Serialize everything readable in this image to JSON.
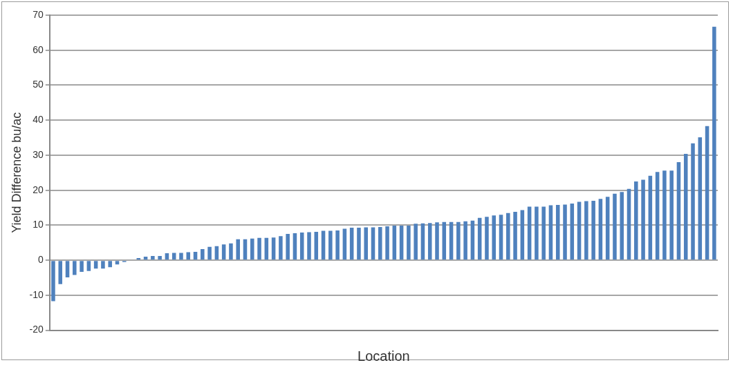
{
  "chart_data": {
    "type": "bar",
    "xlabel": "Location",
    "ylabel": "Yield Difference bu/ac",
    "color": "#4f81bd",
    "ylim": [
      -20,
      70
    ],
    "yticks": [
      -20,
      -10,
      0,
      10,
      20,
      30,
      40,
      50,
      60,
      70
    ],
    "grid": "y",
    "legend": false,
    "categories": [
      null,
      null,
      null,
      null,
      null,
      null,
      null,
      null,
      null,
      null,
      null,
      null,
      null,
      null,
      null,
      null,
      null,
      null,
      null,
      null,
      null,
      null,
      null,
      null,
      null,
      null,
      null,
      null,
      null,
      null,
      null,
      null,
      null,
      null,
      null,
      null,
      null,
      null,
      null,
      null,
      null,
      null,
      null,
      null,
      null,
      null,
      null,
      null,
      null,
      null,
      null,
      null,
      null,
      null,
      null,
      null,
      null,
      null,
      null,
      null,
      null,
      null,
      null,
      null,
      null,
      null,
      null,
      null,
      null,
      null,
      null,
      null,
      null,
      null,
      null,
      null,
      null,
      null,
      null,
      null,
      null,
      null,
      null,
      null,
      null,
      null,
      null,
      null,
      null,
      null,
      null,
      null,
      null,
      null
    ],
    "values": [
      -11.7,
      -6.8,
      -4.9,
      -4.2,
      -3.3,
      -3.1,
      -2.4,
      -2.4,
      -2,
      -1.2,
      -0.5,
      -0.2,
      0.6,
      1,
      1.2,
      1.2,
      2,
      2.1,
      2.1,
      2.3,
      2.4,
      3.2,
      3.8,
      4,
      4.5,
      4.8,
      6,
      6,
      6.2,
      6.4,
      6.4,
      6.5,
      6.9,
      7.5,
      7.7,
      7.9,
      8,
      8.1,
      8.4,
      8.4,
      8.5,
      9,
      9.3,
      9.3,
      9.4,
      9.4,
      9.5,
      9.7,
      9.9,
      9.9,
      9.9,
      10.4,
      10.5,
      10.6,
      10.8,
      10.9,
      10.9,
      10.9,
      11.1,
      11.3,
      12.1,
      12.4,
      12.8,
      13,
      13.5,
      13.8,
      14.3,
      15.3,
      15.3,
      15.3,
      15.7,
      15.8,
      15.9,
      16.2,
      16.7,
      16.9,
      17,
      17.5,
      18.1,
      19,
      19.5,
      20.4,
      22.5,
      23,
      24.1,
      25.2,
      25.6,
      25.6,
      28,
      30.4,
      33.4,
      35.1,
      38.3,
      66.7
    ]
  }
}
